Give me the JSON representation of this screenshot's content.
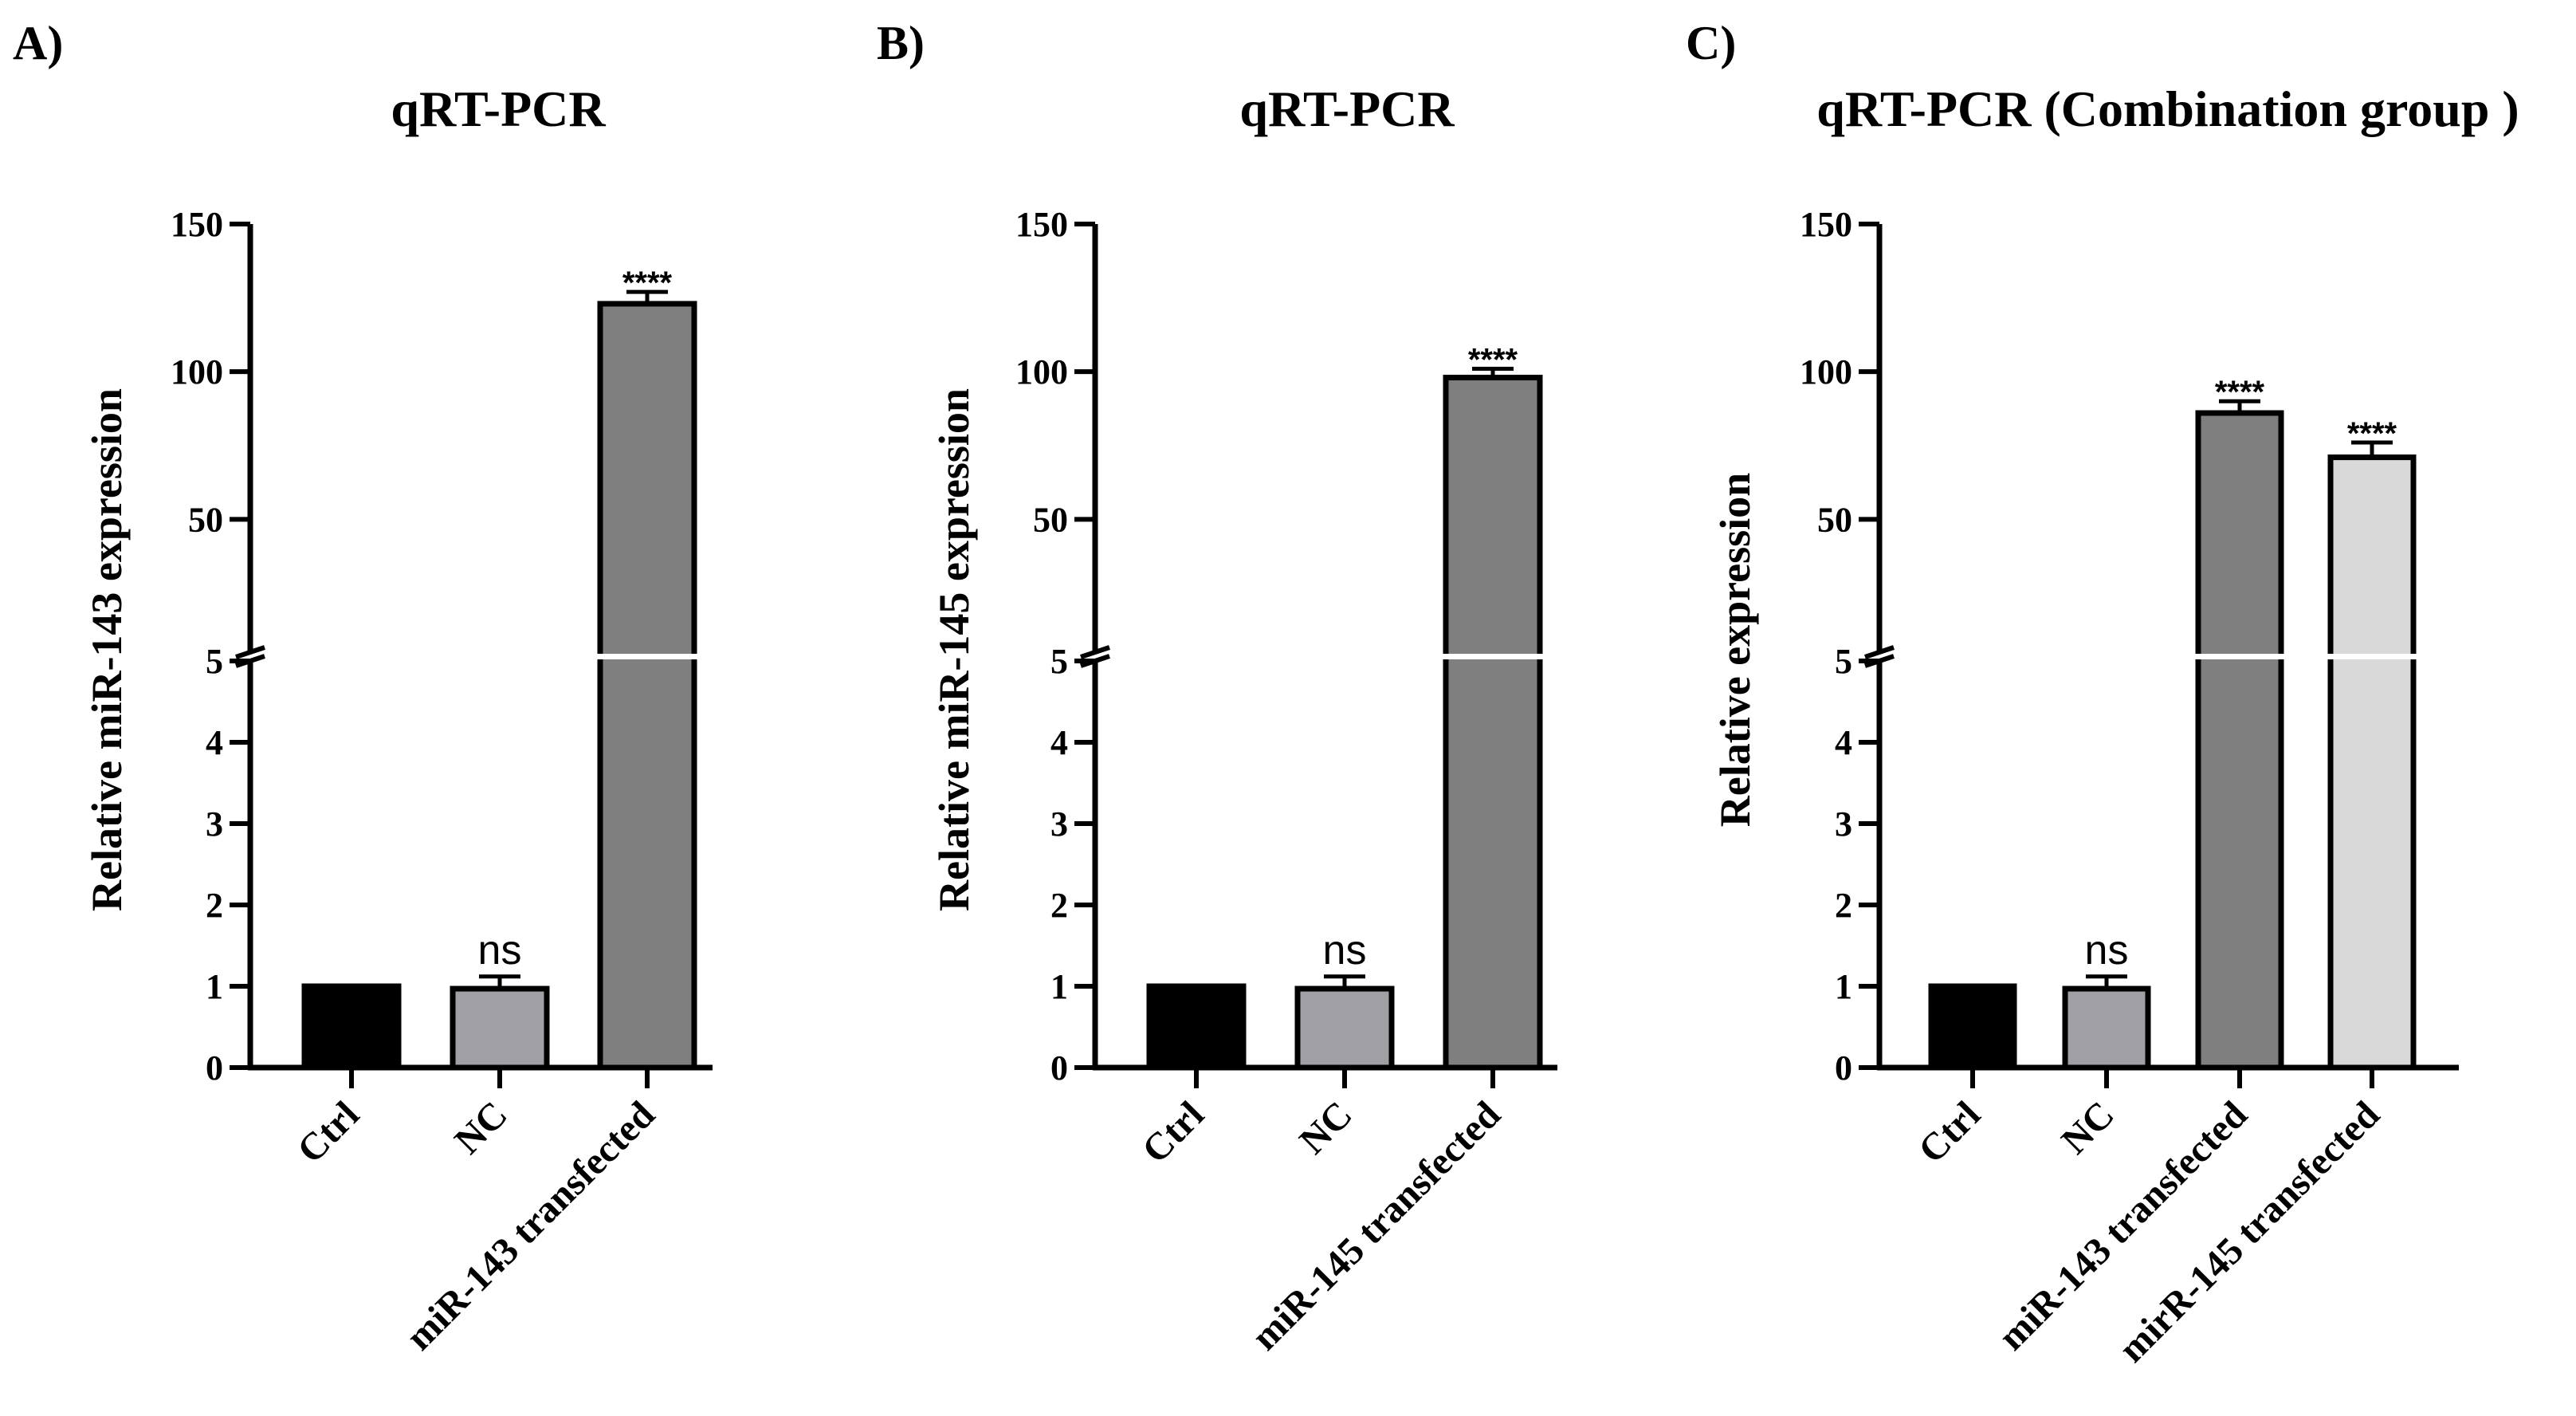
{
  "chart_data": [
    {
      "panel": "A)",
      "type": "bar",
      "title": "qRT-PCR",
      "xlabel": "",
      "ylabel": "Relative miR-143 expression",
      "axis_break": {
        "lower_range": [
          0,
          5
        ],
        "upper_range": [
          5,
          150
        ]
      },
      "lower_ticks": [
        "0",
        "1",
        "2",
        "3",
        "4",
        "5"
      ],
      "upper_ticks": [
        "50",
        "100",
        "150"
      ],
      "categories": [
        "Ctrl",
        "NC",
        "miR-143 transfected"
      ],
      "values": [
        1.0,
        0.97,
        123
      ],
      "errors": [
        0,
        0.15,
        4
      ],
      "colors": [
        "#000000",
        "#a0a0a4",
        "#7f7f7f"
      ],
      "significance": [
        "",
        "ns",
        "****"
      ]
    },
    {
      "panel": "B)",
      "type": "bar",
      "title": "qRT-PCR",
      "xlabel": "",
      "ylabel": "Relative miR-145 expression",
      "axis_break": {
        "lower_range": [
          0,
          5
        ],
        "upper_range": [
          5,
          150
        ]
      },
      "lower_ticks": [
        "0",
        "1",
        "2",
        "3",
        "4",
        "5"
      ],
      "upper_ticks": [
        "50",
        "100",
        "150"
      ],
      "categories": [
        "Ctrl",
        "NC",
        "miR-145 transfected"
      ],
      "values": [
        1.0,
        0.97,
        98
      ],
      "errors": [
        0,
        0.15,
        3
      ],
      "colors": [
        "#000000",
        "#a0a0a4",
        "#7f7f7f"
      ],
      "significance": [
        "",
        "ns",
        "****"
      ]
    },
    {
      "panel": "C)",
      "type": "bar",
      "title": "qRT-PCR (Combination group )",
      "xlabel": "",
      "ylabel": "Relative expression",
      "axis_break": {
        "lower_range": [
          0,
          5
        ],
        "upper_range": [
          5,
          150
        ]
      },
      "lower_ticks": [
        "0",
        "1",
        "2",
        "3",
        "4",
        "5"
      ],
      "upper_ticks": [
        "50",
        "100",
        "150"
      ],
      "categories": [
        "Ctrl",
        "NC",
        "miR-143 transfected",
        "mirR-145 transfected"
      ],
      "values": [
        1.0,
        0.97,
        86,
        71
      ],
      "errors": [
        0,
        0.15,
        4,
        5
      ],
      "colors": [
        "#000000",
        "#a0a0a4",
        "#7f7f7f",
        "#d9d9d9"
      ],
      "significance": [
        "",
        "ns",
        "****",
        "****"
      ]
    }
  ]
}
